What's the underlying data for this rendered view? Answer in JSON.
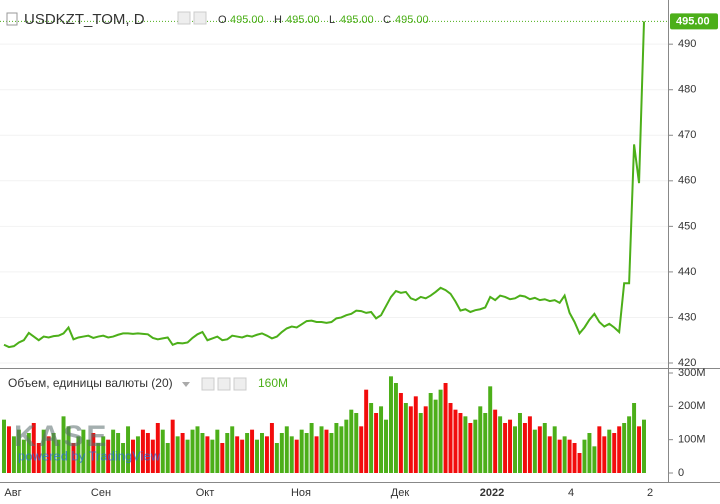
{
  "header": {
    "symbol": "USDKZT_TOM, D",
    "o_label": "O",
    "o": "495.00",
    "h_label": "H",
    "h": "495.00",
    "l_label": "L",
    "l": "495.00",
    "c_label": "C",
    "c": "495.00"
  },
  "chart_data": [
    {
      "type": "line",
      "color": "#4caf19",
      "last_value_label": "495.00",
      "values": [
        424,
        423.5,
        423.7,
        424.5,
        425,
        426.6,
        425.8,
        425,
        425.8,
        425.6,
        425.9,
        426,
        426.5,
        427.8,
        425.2,
        425.6,
        425.8,
        426,
        425.5,
        425.8,
        426,
        425.6,
        425.8,
        426.2,
        426.5,
        426.5,
        426.4,
        426.5,
        426.4,
        426.3,
        425.5,
        425.2,
        425.4,
        425.6,
        424,
        424.4,
        424.3,
        424.5,
        425.5,
        426.3,
        426.8,
        425,
        425.4,
        425.8,
        425,
        425.2,
        426,
        425.8,
        425.6,
        426,
        425.8,
        426.2,
        426.5,
        426,
        425.4,
        425.8,
        426.8,
        427.6,
        428,
        427.8,
        428.5,
        429.2,
        429.3,
        429,
        429,
        428.8,
        429,
        429.8,
        430,
        430.5,
        430.8,
        431.5,
        431.4,
        431,
        431.2,
        429.8,
        430.5,
        432.5,
        434.5,
        435.8,
        435.4,
        435.6,
        434.2,
        433.8,
        434.5,
        434.2,
        434.8,
        435.6,
        436.5,
        436,
        435.2,
        433.5,
        431.5,
        431.8,
        431.2,
        431.6,
        431.8,
        432.2,
        434.5,
        433.8,
        434.8,
        434.5,
        434,
        434.2,
        434.8,
        434.6,
        434,
        434.3,
        433.8,
        434,
        433.6,
        433.8,
        433.2,
        434.8,
        431,
        429,
        426.5,
        427.8,
        429.5,
        430.8,
        429,
        428,
        428.6,
        427.8,
        426.8,
        437.5,
        437.5,
        468,
        459.5,
        495
      ],
      "ylim": [
        418.9,
        499.7
      ],
      "yticks": [
        420,
        430,
        440,
        450,
        460,
        470,
        480,
        490
      ],
      "grid": true
    },
    {
      "type": "volume",
      "title": "Объем, единицы валюты (20)",
      "last_value_label": "160M",
      "up_color": "#4caf19",
      "down_color": "#f20c0c",
      "values": [
        160,
        140,
        110,
        130,
        100,
        120,
        150,
        90,
        130,
        110,
        120,
        100,
        170,
        140,
        90,
        110,
        130,
        100,
        120,
        90,
        110,
        100,
        130,
        120,
        90,
        140,
        100,
        110,
        130,
        120,
        100,
        150,
        130,
        90,
        160,
        110,
        120,
        100,
        130,
        140,
        120,
        110,
        100,
        130,
        90,
        120,
        140,
        110,
        100,
        120,
        130,
        100,
        120,
        110,
        150,
        90,
        120,
        140,
        110,
        100,
        130,
        120,
        150,
        110,
        140,
        130,
        120,
        150,
        140,
        160,
        190,
        180,
        140,
        250,
        210,
        180,
        200,
        160,
        290,
        270,
        240,
        210,
        200,
        230,
        180,
        200,
        240,
        220,
        250,
        270,
        210,
        190,
        180,
        170,
        150,
        160,
        200,
        180,
        260,
        190,
        170,
        150,
        160,
        140,
        180,
        150,
        170,
        130,
        140,
        150,
        110,
        140,
        100,
        110,
        100,
        90,
        60,
        100,
        120,
        80,
        140,
        110,
        130,
        120,
        140,
        150,
        170,
        210,
        140,
        160
      ],
      "ylim": [
        -27,
        309
      ],
      "yticks": [
        0,
        {
          "value": 100,
          "label": "100M"
        },
        {
          "value": 200,
          "label": "200M"
        },
        {
          "value": 300,
          "label": "300M"
        }
      ]
    }
  ],
  "x_labels": [
    "Авг",
    "Сен",
    "Окт",
    "Ноя",
    "Дек",
    "2022",
    "4",
    "2"
  ],
  "watermark": {
    "logo": "KASE",
    "credit": "powered by TradingView"
  }
}
